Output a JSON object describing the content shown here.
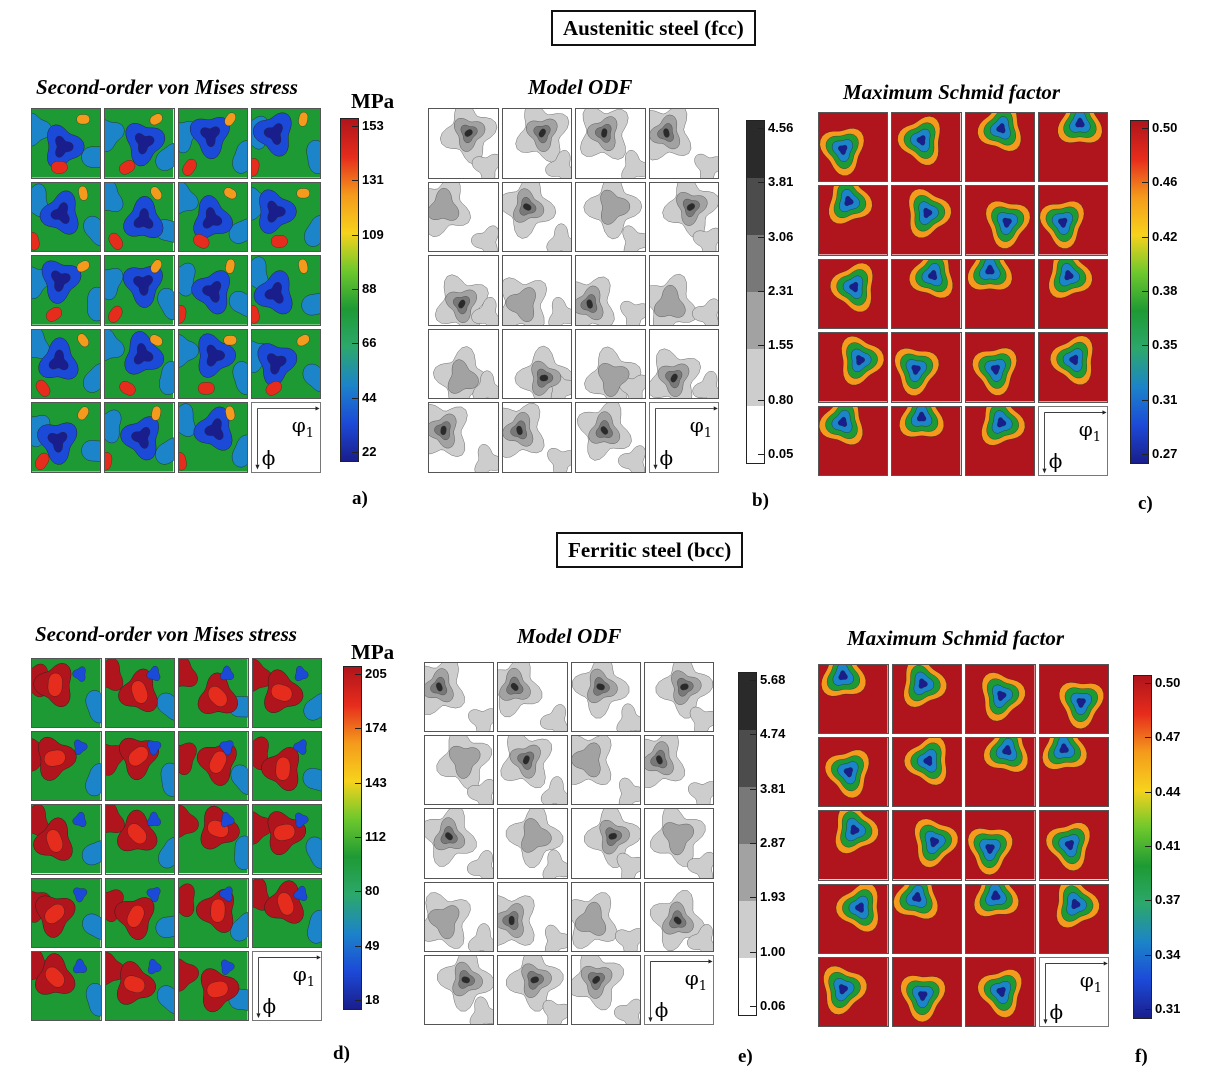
{
  "figure": {
    "top_section_title": "Austenitic steel (fcc)",
    "bottom_section_title": "Ferritic steel (bcc)",
    "panels": [
      {
        "id": "a",
        "label": "a)",
        "title": "Second-order von Mises stress",
        "unit": "MPa",
        "type": "stress",
        "ticks": [
          "153",
          "131",
          "109",
          "88",
          "66",
          "44",
          "22"
        ],
        "colors": [
          "#b0141c",
          "#e62c1c",
          "#f49a1c",
          "#f7d21c",
          "#6ec82c",
          "#1e9a34",
          "#2ca86c",
          "#1c84c8",
          "#1c4ad8",
          "#1a1e8c"
        ]
      },
      {
        "id": "b",
        "label": "b)",
        "title": "Model ODF",
        "unit": "",
        "type": "odf",
        "ticks": [
          "4.56",
          "3.81",
          "3.06",
          "2.31",
          "1.55",
          "0.80",
          "0.05"
        ],
        "colors": [
          "#2a2a2a",
          "#4c4c4c",
          "#787878",
          "#a2a2a2",
          "#cdcdcd",
          "#ffffff"
        ]
      },
      {
        "id": "c",
        "label": "c)",
        "title": "Maximum Schmid factor",
        "unit": "",
        "type": "schmid",
        "ticks": [
          "0.50",
          "0.46",
          "0.42",
          "0.38",
          "0.35",
          "0.31",
          "0.27"
        ],
        "colors": [
          "#b0141c",
          "#e62c1c",
          "#f49a1c",
          "#f7d21c",
          "#6ec82c",
          "#1e9a34",
          "#2ca86c",
          "#1c84c8",
          "#1c4ad8",
          "#1a1e8c"
        ]
      },
      {
        "id": "d",
        "label": "d)",
        "title": "Second-order von Mises stress",
        "unit": "MPa",
        "type": "stress",
        "ticks": [
          "205",
          "174",
          "143",
          "112",
          "80",
          "49",
          "18"
        ],
        "colors": [
          "#b0141c",
          "#e62c1c",
          "#f49a1c",
          "#f7d21c",
          "#6ec82c",
          "#1e9a34",
          "#2ca86c",
          "#1c84c8",
          "#1c4ad8",
          "#1a1e8c"
        ]
      },
      {
        "id": "e",
        "label": "e)",
        "title": "Model ODF",
        "unit": "",
        "type": "odf",
        "ticks": [
          "5.68",
          "4.74",
          "3.81",
          "2.87",
          "1.93",
          "1.00",
          "0.06"
        ],
        "colors": [
          "#2a2a2a",
          "#4c4c4c",
          "#787878",
          "#a2a2a2",
          "#cdcdcd",
          "#ffffff"
        ]
      },
      {
        "id": "f",
        "label": "f)",
        "title": "Maximum Schmid factor",
        "unit": "",
        "type": "schmid",
        "ticks": [
          "0.50",
          "0.47",
          "0.44",
          "0.41",
          "0.37",
          "0.34",
          "0.31"
        ],
        "colors": [
          "#b0141c",
          "#e62c1c",
          "#f49a1c",
          "#f7d21c",
          "#6ec82c",
          "#1e9a34",
          "#2ca86c",
          "#1c84c8",
          "#1c4ad8",
          "#1a1e8c"
        ]
      }
    ],
    "axis_label_phi1": "φ",
    "axis_label_phi1_sub": "1",
    "axis_label_phi": "ϕ"
  }
}
